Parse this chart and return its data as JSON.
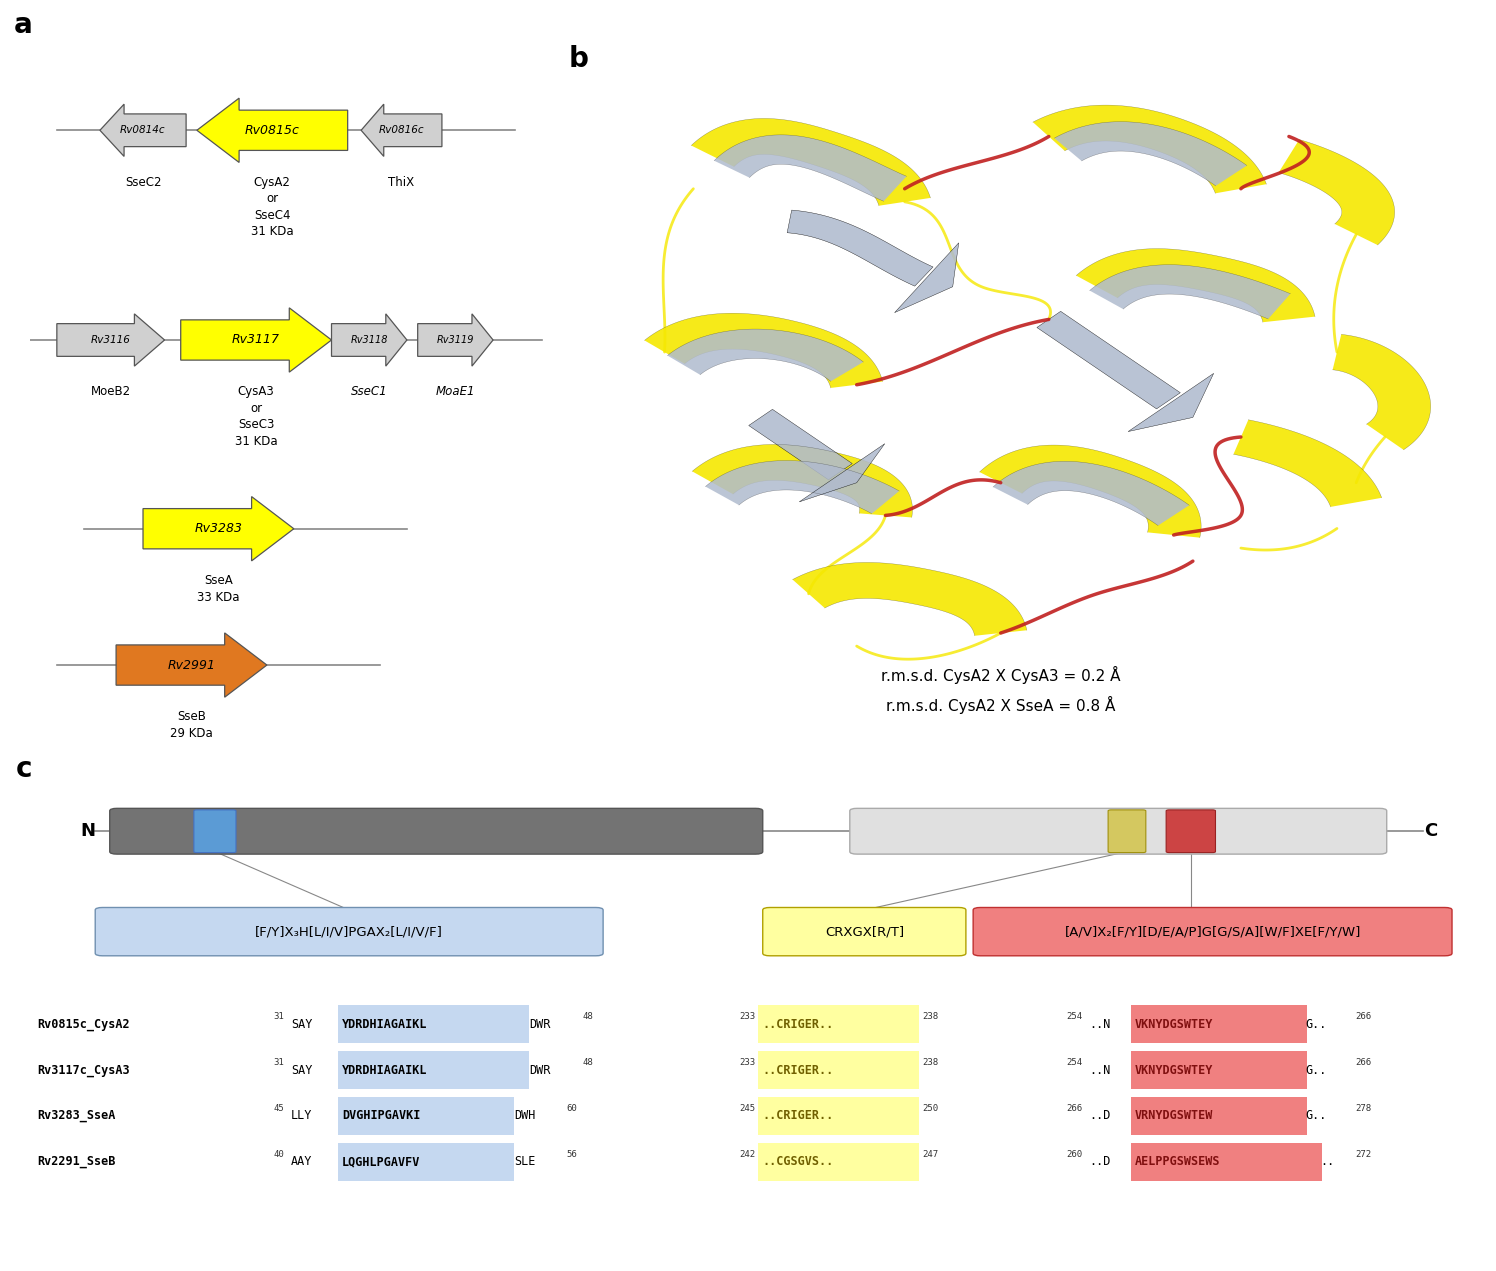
{
  "panel_a_label": "a",
  "panel_b_label": "b",
  "panel_c_label": "c",
  "rmsd_line1": "r.m.s.d. CysA2 X CysA3 = 0.2 Å",
  "rmsd_line2": "r.m.s.d. CysA2 X SseA = 0.8 Å",
  "seq_rows": [
    {
      "name": "Rv0815c_CysA2",
      "prefix": "31",
      "pre1": "..SAY",
      "highlight1": "YDRDHIAGAIKL",
      "suffix1": "DWR..",
      "end1": "48",
      "mid_pre": "233",
      "highlight2": "..CRIGER..",
      "end2": "238",
      "suf3_pre": "254",
      "pre3": "..N",
      "highlight3": "VKNYDGSWTEY",
      "suf3": "G..",
      "end3": "266"
    },
    {
      "name": "Rv3117c_CysA3",
      "prefix": "31",
      "pre1": "..SAY",
      "highlight1": "YDRDHIAGAIKL",
      "suffix1": "DWR..",
      "end1": "48",
      "mid_pre": "233",
      "highlight2": "..CRIGER..",
      "end2": "238",
      "suf3_pre": "254",
      "pre3": "..N",
      "highlight3": "VKNYDGSWTEY",
      "suf3": "G..",
      "end3": "266"
    },
    {
      "name": "Rv3283_SseA",
      "prefix": "45",
      "pre1": "..LLY",
      "highlight1": "DVGHIPGAVKI",
      "suffix1": "DWH..",
      "end1": "60",
      "mid_pre": "245",
      "highlight2": "..CRIGER..",
      "end2": "250",
      "suf3_pre": "266",
      "pre3": "..D",
      "highlight3": "VRNYDGSWTEW",
      "suf3": "G..",
      "end3": "278"
    },
    {
      "name": "Rv2291_SseB",
      "prefix": "40",
      "pre1": "..AAY",
      "highlight1": "LQGHLPGAVFV",
      "suffix1": "SLE..",
      "end1": "56",
      "mid_pre": "242",
      "highlight2": "..CGSGVS..",
      "end2": "247",
      "suf3_pre": "260",
      "pre3": "..D",
      "highlight3": "AELPPGSWSEWS",
      "suf3": "..",
      "end3": "272"
    }
  ],
  "motif1_label": "[F/Y]X₃H[L/I/V]PGAX₂[L/I/V/F]",
  "motif2_label": "CRXGX[R/T]",
  "motif3_label": "[A/V]X₂[F/Y][D/E/A/P]G[G/S/A][W/F]XE[F/Y/W]"
}
